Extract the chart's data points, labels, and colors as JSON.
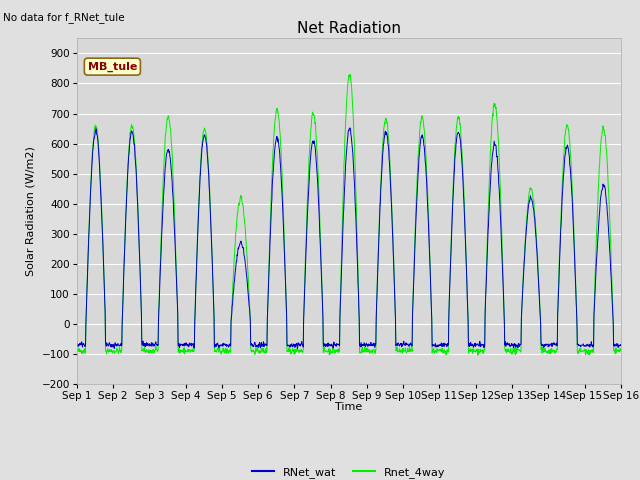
{
  "title": "Net Radiation",
  "no_data_text": "No data for f_RNet_tule",
  "mb_tule_label": "MB_tule",
  "ylabel": "Solar Radiation (W/m2)",
  "xlabel": "Time",
  "ylim": [
    -200,
    950
  ],
  "yticks": [
    -200,
    -100,
    0,
    100,
    200,
    300,
    400,
    500,
    600,
    700,
    800,
    900
  ],
  "xtick_labels": [
    "Sep 1",
    "Sep 2",
    "Sep 3",
    "Sep 4",
    "Sep 5",
    "Sep 6",
    "Sep 7",
    "Sep 8",
    "Sep 9",
    "Sep 10",
    "Sep 11",
    "Sep 12",
    "Sep 13",
    "Sep 14",
    "Sep 15",
    "Sep 16"
  ],
  "line1_color": "#0000cc",
  "line2_color": "#00ee00",
  "line1_label": "RNet_wat",
  "line2_label": "Rnet_4way",
  "fig_bg_color": "#e0e0e0",
  "plot_bg_color": "#d8d8d8",
  "title_fontsize": 11,
  "label_fontsize": 8,
  "tick_fontsize": 7.5,
  "legend_fontsize": 8
}
